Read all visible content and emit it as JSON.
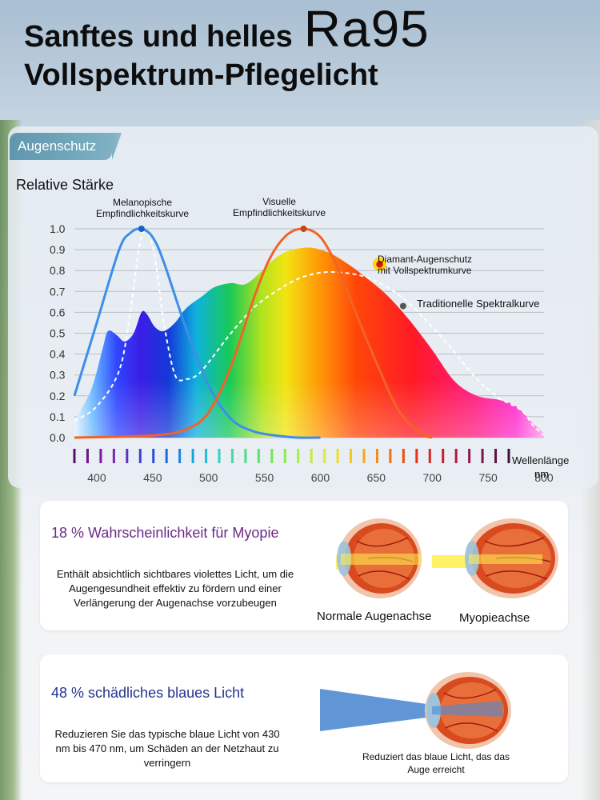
{
  "header": {
    "title_line1": "Sanftes und helles",
    "title_ra": "Ra95",
    "title_line2": "Vollspektrum-Pflegelicht"
  },
  "section_tab": "Augenschutz",
  "chart_data": {
    "type": "area",
    "ylabel": "Relative Stärke",
    "xlabel": "Wellenlänge",
    "xunit": "nm",
    "xlim": [
      380,
      800
    ],
    "ylim": [
      0,
      1.0
    ],
    "x_ticks": [
      400,
      450,
      500,
      550,
      600,
      650,
      700,
      750,
      800
    ],
    "y_ticks": [
      0.0,
      0.1,
      0.2,
      0.3,
      0.4,
      0.5,
      0.6,
      0.7,
      0.8,
      0.9,
      1.0
    ],
    "y_tick_labels": [
      "0.0",
      "0.1",
      "0.2",
      "0.3",
      "0.4",
      "0.5",
      "0.6",
      "0.7",
      "0.8",
      "0.9",
      "1.0"
    ],
    "grid": true,
    "series": [
      {
        "name": "Diamant-Augenschutz mit Vollspektrumkurve",
        "style": "filled-spectrum",
        "x": [
          380,
          395,
          405,
          410,
          418,
          425,
          433,
          440,
          445,
          452,
          460,
          470,
          480,
          495,
          505,
          520,
          535,
          560,
          575,
          590,
          600,
          610,
          625,
          640,
          660,
          680,
          700,
          720,
          740,
          760,
          775,
          790,
          800
        ],
        "y": [
          0.08,
          0.23,
          0.42,
          0.51,
          0.49,
          0.46,
          0.5,
          0.6,
          0.59,
          0.53,
          0.51,
          0.55,
          0.62,
          0.68,
          0.72,
          0.74,
          0.74,
          0.86,
          0.9,
          0.91,
          0.9,
          0.88,
          0.83,
          0.77,
          0.68,
          0.56,
          0.42,
          0.27,
          0.2,
          0.18,
          0.15,
          0.07,
          0.02
        ]
      },
      {
        "name": "Traditionelle Spektralkurve",
        "style": "dashed",
        "color": "#ffffff",
        "x": [
          380,
          400,
          420,
          430,
          440,
          450,
          460,
          470,
          480,
          490,
          500,
          520,
          540,
          560,
          580,
          600,
          620,
          640,
          660,
          680,
          700,
          720,
          740,
          760,
          780,
          790,
          800
        ],
        "y": [
          0.08,
          0.15,
          0.32,
          0.6,
          0.96,
          0.92,
          0.55,
          0.3,
          0.28,
          0.3,
          0.36,
          0.5,
          0.62,
          0.7,
          0.76,
          0.79,
          0.79,
          0.77,
          0.72,
          0.64,
          0.53,
          0.41,
          0.28,
          0.19,
          0.13,
          0.06,
          0.01
        ]
      },
      {
        "name": "Melanopische Empfindlichkeitskurve",
        "style": "line",
        "color": "#3d8ee8",
        "x": [
          380,
          400,
          420,
          430,
          440,
          450,
          460,
          480,
          500,
          520,
          540,
          560,
          580,
          600
        ],
        "y": [
          0.2,
          0.55,
          0.9,
          0.98,
          1.0,
          0.96,
          0.84,
          0.52,
          0.25,
          0.09,
          0.03,
          0.01,
          0.0,
          0.0
        ]
      },
      {
        "name": "Visuelle Empfindlichkeitskurve",
        "style": "line",
        "color": "#f06428",
        "x": [
          380,
          450,
          480,
          500,
          520,
          540,
          555,
          570,
          585,
          600,
          615,
          630,
          650,
          670,
          690,
          700
        ],
        "y": [
          0.0,
          0.01,
          0.04,
          0.12,
          0.34,
          0.66,
          0.86,
          0.97,
          1.0,
          0.96,
          0.82,
          0.62,
          0.36,
          0.13,
          0.02,
          0.0
        ]
      }
    ],
    "annotations": [
      {
        "text": "Melanopische\nEmpfindlichkeitskurve",
        "series": "Melanopische Empfindlichkeitskurve"
      },
      {
        "text": "Visuelle\nEmpfindlichkeitskurve",
        "series": "Visuelle Empfindlichkeitskurve"
      },
      {
        "text": "Diamant-Augenschutz\nmit Vollspektrumkurve",
        "series": "Diamant-Augenschutz mit Vollspektrumkurve"
      },
      {
        "text": "Traditionelle Spektralkurve",
        "series": "Traditionelle Spektralkurve"
      }
    ],
    "spectrum_bar_colors": [
      "#5a0d6e",
      "#6e1486",
      "#7e1a9e",
      "#7a23b4",
      "#5b31c8",
      "#3a41d6",
      "#2253e0",
      "#1a6ae4",
      "#1984e2",
      "#1ba2de",
      "#23bcd6",
      "#2ed1c4",
      "#3fdca6",
      "#47e085",
      "#58e46a",
      "#6ee757",
      "#8bea4c",
      "#a7ec43",
      "#c3ec3b",
      "#dcea33",
      "#ede02c",
      "#f2c725",
      "#f4aa20",
      "#f48c1c",
      "#f06c18",
      "#ea4d17",
      "#e23318",
      "#d7241f",
      "#c81c2d",
      "#b21a3e",
      "#961848",
      "#7a1648",
      "#5c1340",
      "#3e1034"
    ]
  },
  "card_myopia": {
    "title": "18 % Wahrscheinlichkeit für Myopie",
    "text": "Enthält absichtlich sichtbares violettes Licht, um die Augengesundheit effektiv zu fördern und einer Verlängerung der Augenachse vorzubeugen",
    "label_normal": "Normale Augenachse",
    "label_myopia": "Myopieachse"
  },
  "card_bluelight": {
    "title": "48 % schädliches blaues Licht",
    "text": "Reduzieren Sie das typische blaue Licht von 430 nm bis 470 nm, um Schäden an der Netzhaut zu verringern",
    "caption": "Reduziert das blaue Licht, das das Auge erreicht"
  },
  "colors": {
    "melanopic": "#3d8ee8",
    "visual": "#f06428",
    "myopia_title": "#6a2a86",
    "bluelight_title": "#23348e",
    "tab": "#6aa3b8"
  }
}
